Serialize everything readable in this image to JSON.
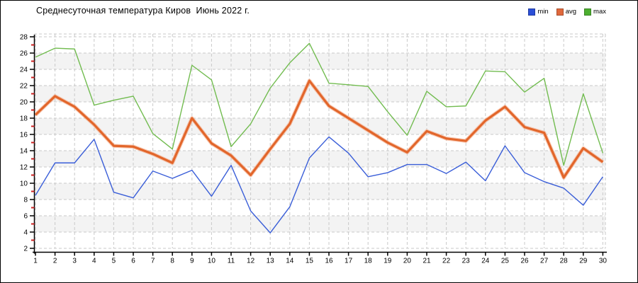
{
  "title": "Среднесуточная температура Киров  Июнь 2022 г.",
  "legend": [
    {
      "label": "min",
      "color": "#2b4fd7"
    },
    {
      "label": "avg",
      "color": "#e0683c"
    },
    {
      "label": "max",
      "color": "#4caf30"
    }
  ],
  "chart_data": {
    "type": "line",
    "title": "Среднесуточная температура Киров  Июнь 2022 г.",
    "x": [
      1,
      2,
      3,
      4,
      5,
      6,
      7,
      8,
      9,
      10,
      11,
      12,
      13,
      14,
      15,
      16,
      17,
      18,
      19,
      20,
      21,
      22,
      23,
      24,
      25,
      26,
      27,
      28,
      29,
      30
    ],
    "series": [
      {
        "name": "max",
        "color": "#72bc50",
        "values": [
          25.5,
          26.6,
          26.5,
          19.6,
          20.2,
          20.7,
          16.1,
          14.2,
          24.5,
          22.7,
          14.5,
          17.3,
          21.7,
          24.8,
          27.2,
          22.3,
          22.1,
          21.9,
          18.8,
          15.9,
          21.3,
          19.4,
          19.5,
          23.8,
          23.7,
          21.2,
          22.9,
          12.2,
          21.0,
          13.7
        ]
      },
      {
        "name": "avg",
        "color": "#e2662b",
        "values": [
          18.4,
          20.7,
          19.4,
          17.2,
          14.6,
          14.5,
          13.6,
          12.5,
          18.0,
          14.9,
          13.4,
          11.0,
          14.2,
          17.3,
          22.6,
          19.5,
          18.0,
          16.5,
          15.0,
          13.8,
          16.4,
          15.5,
          15.2,
          17.7,
          19.4,
          16.9,
          16.2,
          10.7,
          14.3,
          12.6
        ]
      },
      {
        "name": "min",
        "color": "#3a5ed8",
        "values": [
          8.5,
          12.5,
          12.5,
          15.4,
          8.9,
          8.2,
          11.5,
          10.6,
          11.6,
          8.4,
          12.2,
          6.6,
          3.9,
          7.1,
          13.1,
          15.7,
          13.7,
          10.8,
          11.3,
          12.3,
          12.3,
          11.2,
          12.6,
          10.3,
          14.6,
          11.3,
          10.2,
          9.4,
          7.3,
          10.8
        ]
      }
    ],
    "ylim": [
      2,
      28
    ],
    "ytick_step": 2,
    "yminor_step": 1,
    "grid": true,
    "legend_position": "top-right",
    "styles": {
      "avg_halo": "#f4a27b",
      "grid_color": "#c9c9c9",
      "band_color": "#f3f3f3",
      "axis_color": "#000000",
      "minor_tick_color": "#cc2222"
    }
  }
}
